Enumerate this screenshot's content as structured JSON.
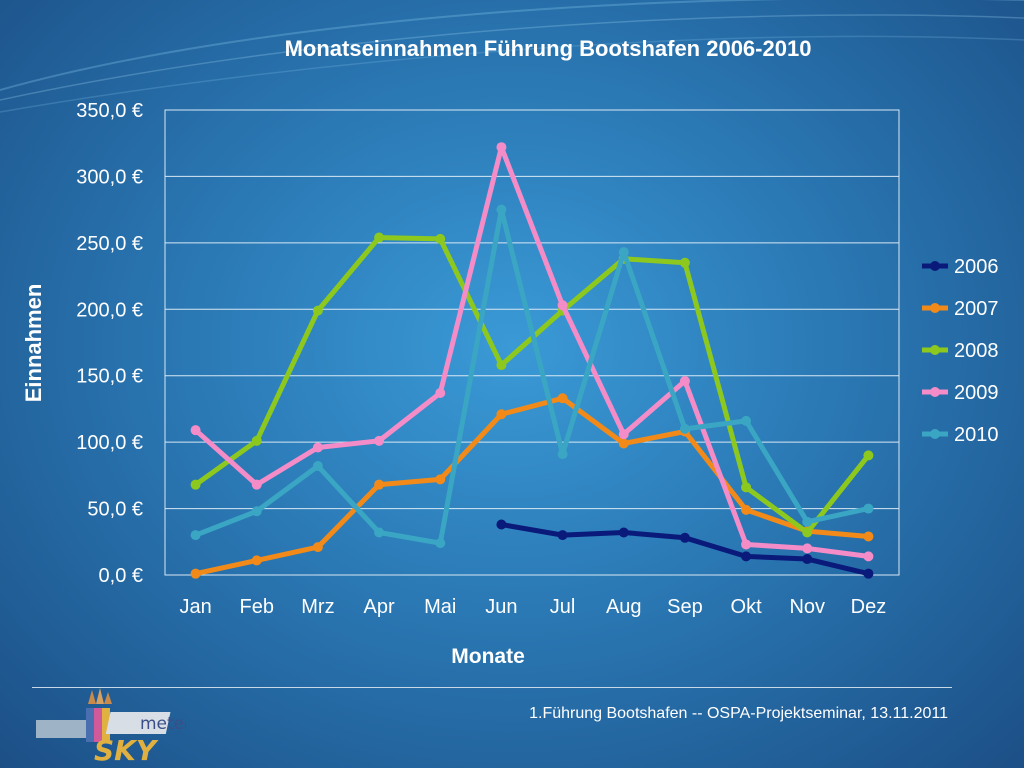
{
  "chart_data": {
    "type": "line",
    "title": "Monatseinnahmen Führung Bootshafen 2006-2010",
    "xlabel": "Monate",
    "ylabel": "Einnahmen",
    "ylim": [
      0,
      350
    ],
    "yticks": [
      "0,0 €",
      "50,0 €",
      "100,0 €",
      "150,0 €",
      "200,0 €",
      "250,0 €",
      "300,0 €",
      "350,0 €"
    ],
    "categories": [
      "Jan",
      "Feb",
      "Mrz",
      "Apr",
      "Mai",
      "Jun",
      "Jul",
      "Aug",
      "Sep",
      "Okt",
      "Nov",
      "Dez"
    ],
    "legend_position": "right",
    "series": [
      {
        "name": "2006",
        "color": "#0a1a7a",
        "values": [
          null,
          null,
          null,
          null,
          null,
          38,
          30,
          32,
          28,
          14,
          12,
          1
        ]
      },
      {
        "name": "2007",
        "color": "#f28a1a",
        "values": [
          1,
          11,
          21,
          68,
          72,
          121,
          133,
          99,
          108,
          49,
          33,
          29
        ]
      },
      {
        "name": "2008",
        "color": "#8cc81e",
        "values": [
          68,
          101,
          199,
          254,
          253,
          158,
          199,
          238,
          235,
          66,
          32,
          90
        ]
      },
      {
        "name": "2009",
        "color": "#f48cc8",
        "values": [
          109,
          68,
          96,
          101,
          137,
          322,
          203,
          106,
          146,
          23,
          20,
          14
        ]
      },
      {
        "name": "2010",
        "color": "#3aa6c4",
        "values": [
          30,
          48,
          82,
          32,
          24,
          275,
          91,
          243,
          110,
          116,
          40,
          50
        ]
      }
    ]
  },
  "footer": {
    "text": "1.Führung Bootshafen -- OSPA-Projektseminar, 13.11.2011"
  },
  "logo": {
    "word1": "meteo",
    "word2": "SKY"
  }
}
